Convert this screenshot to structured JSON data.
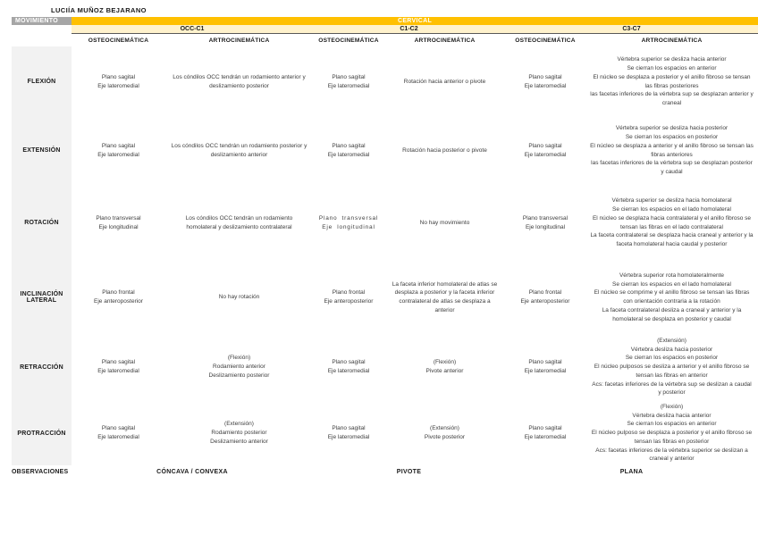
{
  "title": "LUCIÍA MUÑOZ BEJARANO",
  "colors": {
    "region_band": "#FFC000",
    "segment_band": "#FFF2CC",
    "corner_bg": "#A6A6A6",
    "row_label_bg": "#F2F2F2"
  },
  "table": {
    "corner_label": "MOVIMIENTO",
    "region_label": "CERVICAL",
    "segments": [
      "OCC-C1",
      "C1-C2",
      "C3-C7"
    ],
    "column_headers": [
      "OSTEOCINEMÁTICA",
      "ARTROCINEMÁTICA",
      "OSTEOCINEMÁTICA",
      "ARTROCINEMÁTICA",
      "OSTEOCINEMÁTICA",
      "ARTROCINEMÁTICA"
    ],
    "rows": [
      {
        "label": "FLEXIÓN",
        "cells": [
          "Plano sagital\nEje lateromedial",
          "Los cóndilos OCC tendrán un rodamiento anterior y deslizamiento posterior",
          "Plano sagital\nEje lateromedial",
          "Rotación hacia anterior o pivote",
          "Plano sagital\nEje lateromedial",
          "Vértebra superior se desliza hacia anterior\nSe cierran los espacios en anterior\nEl núcleo se desplaza a posterior y el anillo fibroso se tensan las fibras posteriores\nlas facetas inferiores de la vértebra sup se desplazan anterior y craneal"
        ]
      },
      {
        "label": "EXTENSIÓN",
        "cells": [
          "Plano sagital\nEje lateromedial",
          "Los cóndilos OCC tendrán un rodamiento posterior y deslizamiento anterior",
          "Plano sagital\nEje lateromedial",
          "Rotación hacia posterior o pivote",
          "Plano sagital\nEje lateromedial",
          "Vértebra superior se desliza hacia posterior\nSe cierran los espacios en posterior\nEl núcleo se desplaza a anterior y el anillo fibroso se tensan las fibras anteriores\nlas facetas inferiores de la vértebra sup se desplazan posterior y caudal"
        ]
      },
      {
        "label": "ROTACIÓN",
        "cells": [
          "Plano transversal\nEje longitudinal",
          "Los cóndilos OCC tendrán un rodamiento homolateral y deslizamiento contralateral",
          "Plano transversal\nEje longitudinal",
          "No hay movimiento",
          "Plano transversal\nEje longitudinal",
          "Vértebra superior se desliza hacia homolateral\nSe cierran los espacios en el lado homolateral\nEl núcleo se desplaza hacia contralateral y el anillo fibroso se tensan las fibras en el lado contralateral\nLa faceta contralateral se desplaza hacia craneal y anterior y la faceta homolateral hacia caudal y posterior"
        ]
      },
      {
        "label": "INCLINACIÓN\nLATERAL",
        "cells": [
          "Plano frontal\nEje anteroposterior",
          "No hay rotación",
          "Plano frontal\nEje anteroposterior",
          "La faceta inferior homolateral de atlas se desplaza a posterior y la faceta inferior contralateral de atlas se desplaza a anterior",
          "Plano frontal\nEje anteroposterior",
          "Vértebra superior rota homolateralmente\nSe cierran los espacios en el lado homolateral\nEl núcleo se comprime y el anillo fibroso se tensan las fibras con orientación contraria a la rotación\nLa faceta contralateral desliza a craneal y anterior y la homolateral se desplaza en posterior y caudal"
        ]
      },
      {
        "label": "RETRACCIÓN",
        "cells": [
          "Plano sagital\nEje lateromedial",
          "(Flexión)\nRodamiento anterior\nDeslizamiento posterior",
          "Plano sagital\nEje lateromedial",
          "(Flexión)\nPivote anterior",
          "Plano sagital\nEje lateromedial",
          "(Extensión)\nVértebra desliza hacia posterior\nSe cierran los espacios en posterior\nEl núcleo pulposos se desliza a anterior y el anillo fibroso se tensan las fibras en anterior\nAcs: facetas inferiores de la vértebra sup se deslizan a caudal y posterior"
        ]
      },
      {
        "label": "PROTRACCIÓN",
        "cells": [
          "Plano sagital\nEje lateromedial",
          "(Extensión)\nRodamiento posterior\nDeslizamiento anterior",
          "Plano sagital\nEje lateromedial",
          "(Extensión)\nPivote posterior",
          "Plano sagital\nEje lateromedial",
          "(Flexión)\nVértebra desliza hacia anterior\nSe cierran los espacios en anterior\nEl núcleo pulposo se desplaza a posterior y el anillo fibroso se tensan las fibras en posterior\nAcs: facetas inferiores de la vértebra superior se deslizan a craneal y anterior"
        ]
      }
    ],
    "observations": {
      "label": "OBSERVACIONES",
      "values": [
        "CÓNCAVA / CONVEXA",
        "PIVOTE",
        "PLANA"
      ]
    }
  }
}
